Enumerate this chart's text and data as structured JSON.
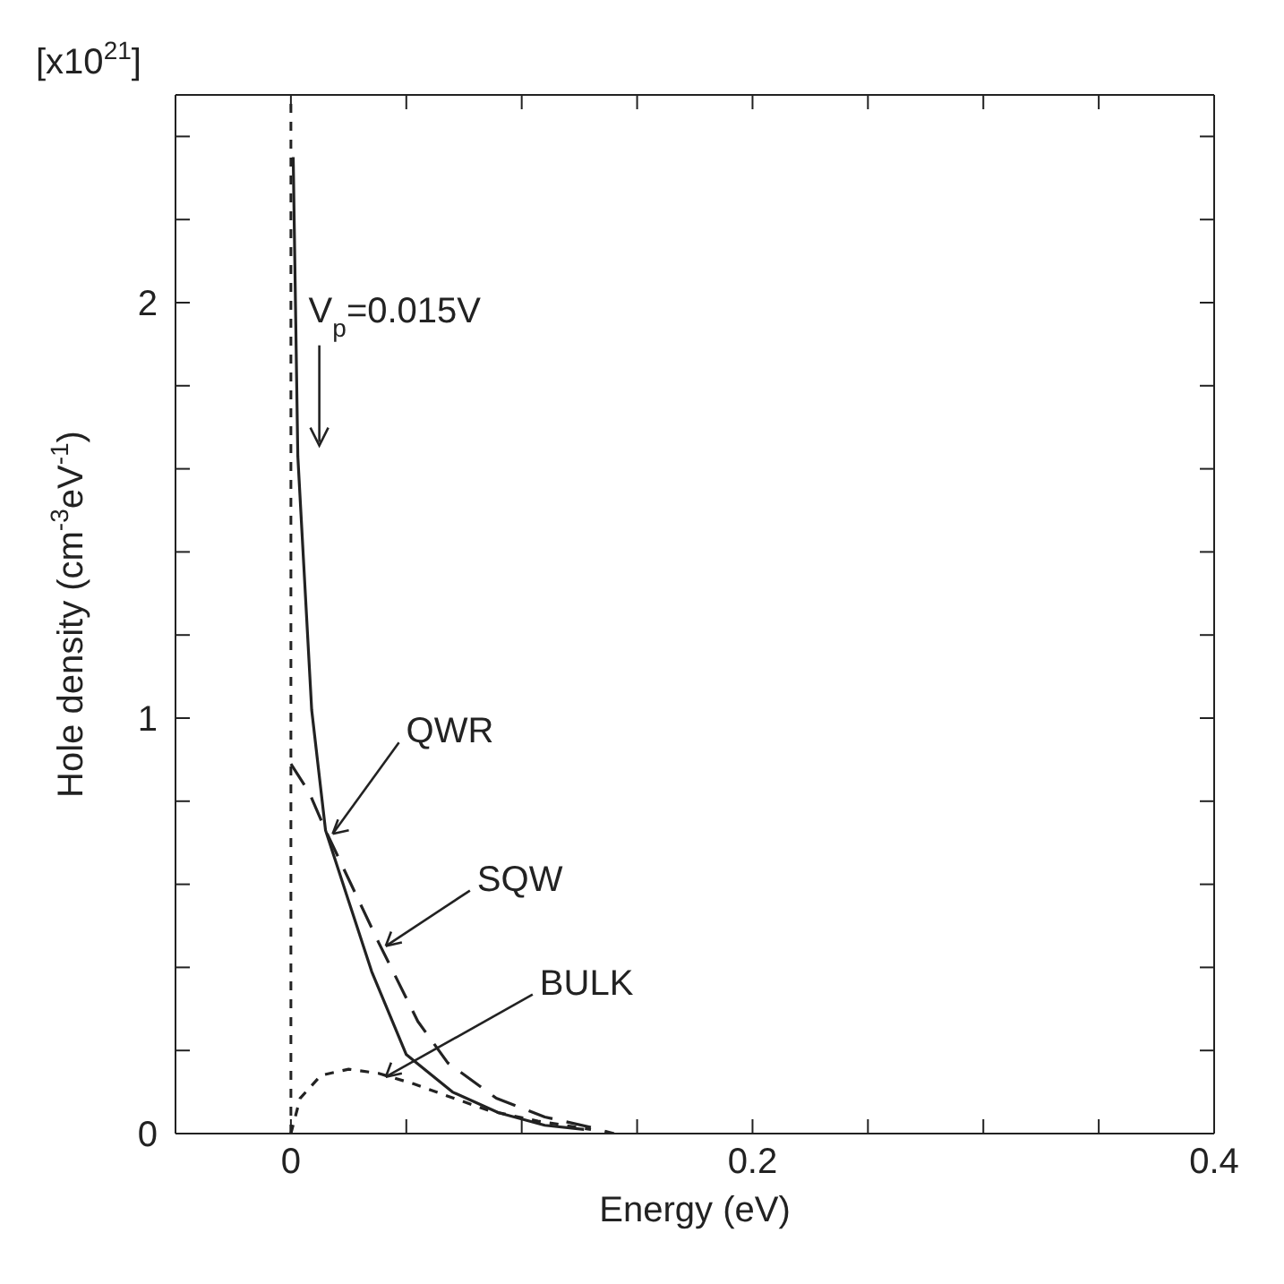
{
  "chart_data": {
    "type": "line",
    "xlabel": "Energy  (eV)",
    "ylabel": "Hole  density  (cm$^{-3}$eV$^{-1}$)",
    "annotations": [
      "[x10$^{21}$]",
      "V$_{p}$=0.015V"
    ],
    "xlim": [
      -0.05,
      0.4
    ],
    "ylim": [
      0,
      2.5
    ],
    "xticks": [
      0,
      {
        "value": 0.05,
        "label": null
      },
      {
        "value": 0.1,
        "label": null
      },
      {
        "value": 0.15,
        "label": null
      },
      0.2,
      {
        "value": 0.25,
        "label": null
      },
      {
        "value": 0.3,
        "label": null
      },
      {
        "value": 0.35,
        "label": null
      },
      0.4
    ],
    "yticks": [
      0,
      {
        "value": 0.2,
        "label": null
      },
      {
        "value": 0.4,
        "label": null
      },
      {
        "value": 0.6,
        "label": null
      },
      {
        "value": 0.8,
        "label": null
      },
      1,
      {
        "value": 1.2,
        "label": null
      },
      {
        "value": 1.4,
        "label": null
      },
      {
        "value": 1.6,
        "label": null
      },
      {
        "value": 1.8,
        "label": null
      },
      2,
      {
        "value": 2.2,
        "label": null
      },
      {
        "value": 2.4,
        "label": null
      }
    ],
    "grid": false,
    "legend": false,
    "marker": "none",
    "ref_lines": [
      {
        "axis": "x",
        "value": 0,
        "label": null,
        "color": "#222222",
        "line_style": "dotted"
      }
    ],
    "series": [
      {
        "name": "QWR",
        "color": "#222222",
        "line_style": "solid",
        "x": [
          0.001,
          0.003,
          0.009,
          0.015,
          0.025,
          0.035,
          0.05,
          0.07,
          0.09,
          0.11,
          0.127
        ],
        "values": [
          2.35,
          1.63,
          1.02,
          0.73,
          0.56,
          0.39,
          0.19,
          0.1,
          0.05,
          0.02,
          0.01
        ]
      },
      {
        "name": "SQW",
        "color": "#222222",
        "line_style": "dashed",
        "x": [
          0,
          0.008,
          0.015,
          0.038,
          0.055,
          0.068,
          0.089,
          0.11,
          0.13,
          0.14
        ],
        "values": [
          0.89,
          0.82,
          0.73,
          0.46,
          0.27,
          0.17,
          0.085,
          0.04,
          0.015,
          0
        ]
      },
      {
        "name": "BULK",
        "color": "#222222",
        "line_style": "dotted",
        "x": [
          0,
          0.004,
          0.013,
          0.025,
          0.038,
          0.053,
          0.068,
          0.086,
          0.107,
          0.13
        ],
        "values": [
          0,
          0.085,
          0.14,
          0.155,
          0.145,
          0.12,
          0.09,
          0.055,
          0.03,
          0.01
        ]
      }
    ]
  }
}
